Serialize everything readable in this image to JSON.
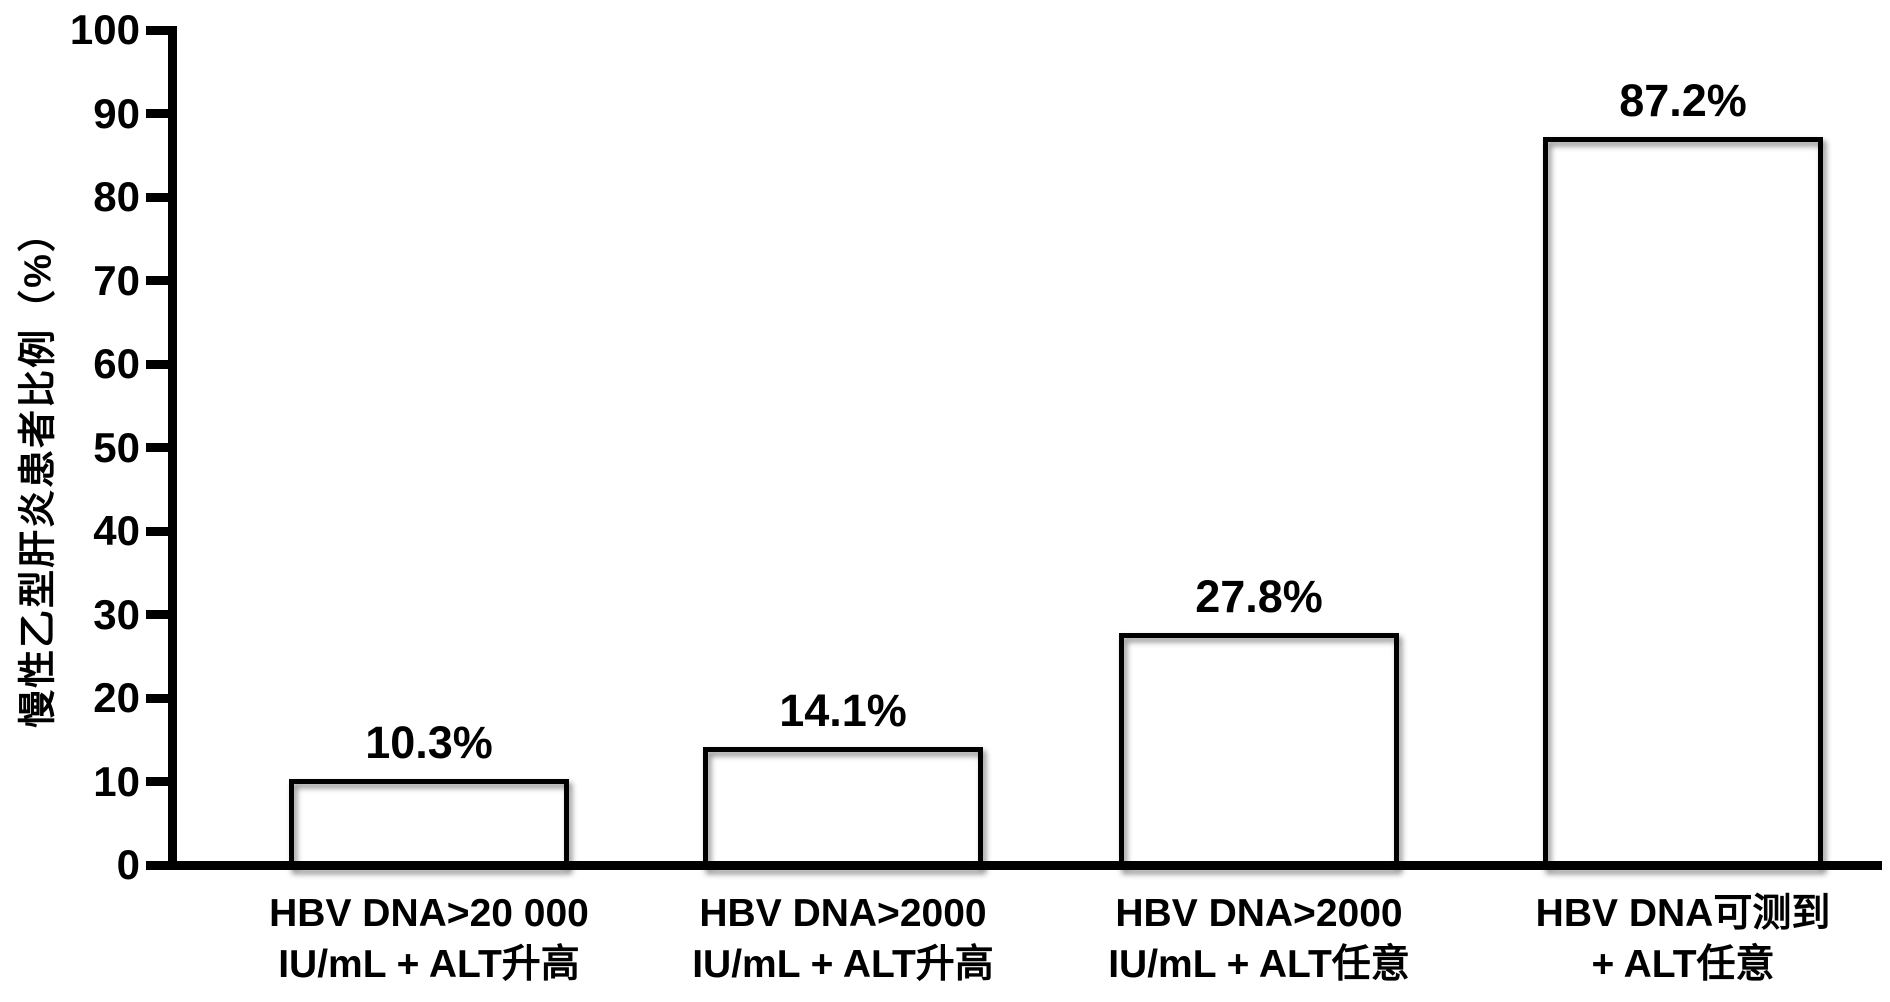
{
  "colors": {
    "background": "#ffffff",
    "text": "#000000",
    "axis": "#000000",
    "bar_fill": "#ffffff",
    "bar_border": "#000000",
    "bar_shadow": "rgba(0,0,0,0.45)"
  },
  "chart_data": {
    "type": "bar",
    "title": "",
    "xlabel": "",
    "ylabel": "慢性乙型肝炎患者比例（%）",
    "ylim": [
      0,
      100
    ],
    "yticks": [
      0,
      10,
      20,
      30,
      40,
      50,
      60,
      70,
      80,
      90,
      100
    ],
    "grid": false,
    "legend": null,
    "categories": [
      [
        "HBV DNA>20 000",
        "IU/mL + ALT升高"
      ],
      [
        "HBV DNA>2000",
        "IU/mL + ALT升高"
      ],
      [
        "HBV DNA>2000",
        "IU/mL + ALT任意"
      ],
      [
        "HBV DNA可测到",
        "+ ALT任意"
      ]
    ],
    "values": [
      10.3,
      14.1,
      27.8,
      87.2
    ],
    "value_labels": [
      "10.3%",
      "14.1%",
      "27.8%",
      "87.2%"
    ]
  }
}
